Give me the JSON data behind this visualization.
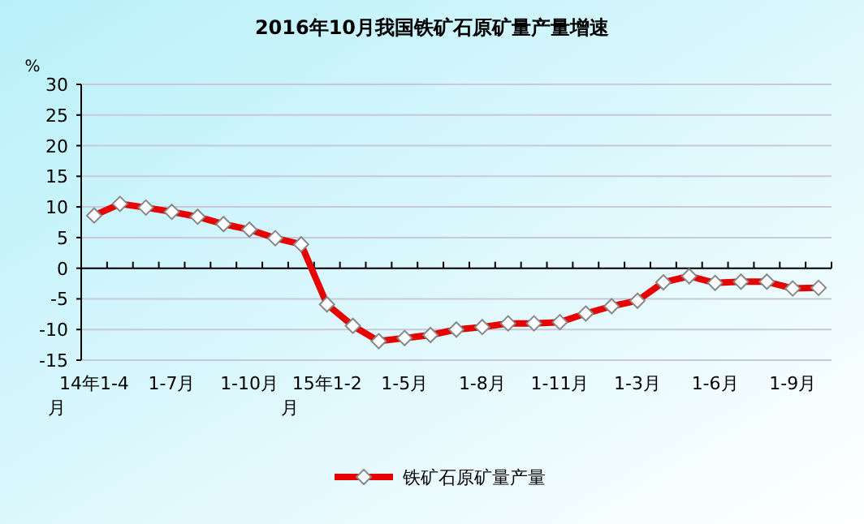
{
  "chart_data": {
    "type": "line",
    "title": "2016年10月我国铁矿石原矿量产量增速",
    "ylabel": "%",
    "categories": [
      "14年1-4月",
      null,
      null,
      "1-7月",
      null,
      null,
      "1-10月",
      null,
      null,
      "15年1-2月",
      null,
      null,
      "1-5月",
      null,
      null,
      "1-8月",
      null,
      null,
      "1-11月",
      null,
      null,
      "1-3月",
      null,
      null,
      "1-6月",
      null,
      null,
      "1-9月",
      null
    ],
    "series": [
      {
        "name": "铁矿石原矿量产量",
        "color": "#e60000",
        "values": [
          8.6,
          10.5,
          9.9,
          9.2,
          8.4,
          7.2,
          6.3,
          4.9,
          3.9,
          -5.9,
          -9.4,
          -11.9,
          -11.4,
          -10.9,
          -10.0,
          -9.6,
          -9.0,
          -9.0,
          -8.8,
          -7.4,
          -6.2,
          -5.3,
          -2.3,
          -1.3,
          -2.4,
          -2.2,
          -2.2,
          -3.3,
          -3.2
        ]
      }
    ],
    "ylim": [
      -15,
      30
    ],
    "yticks": [
      -15,
      -10,
      -5,
      0,
      5,
      10,
      15,
      20,
      25,
      30
    ],
    "grid": "y",
    "legend": "bottom",
    "marker": "diamond",
    "line_style": "solid"
  }
}
